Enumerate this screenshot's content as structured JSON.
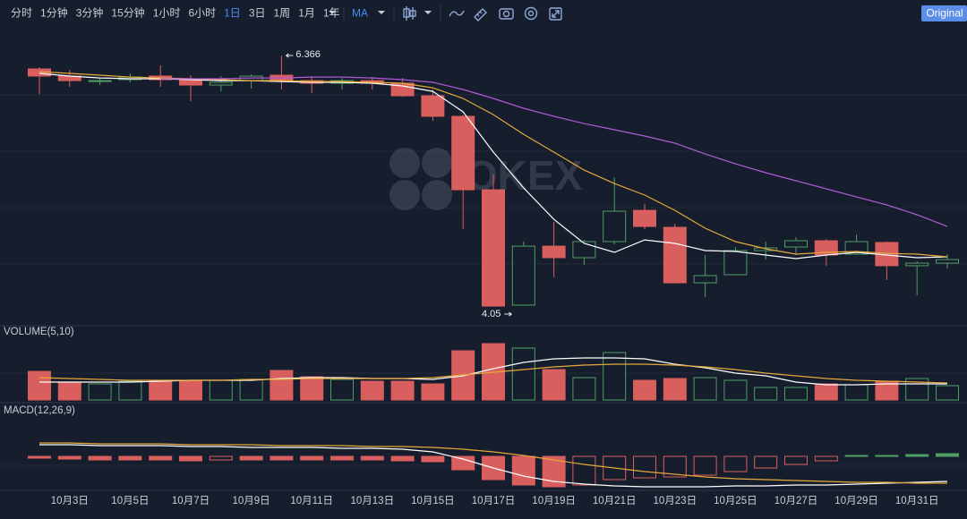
{
  "toolbar": {
    "intervals": [
      "分时",
      "1分钟",
      "3分钟",
      "15分钟",
      "1小时",
      "6小时",
      "1日",
      "3日",
      "1周",
      "1月",
      "1年"
    ],
    "active_interval": "1日",
    "indicator": "MA",
    "mode": "Original"
  },
  "watermark": "OKEX",
  "chart_data": [
    {
      "type": "candlestick",
      "categories": [
        null,
        "10月3日",
        null,
        "10月5日",
        null,
        "10月7日",
        null,
        "10月9日",
        null,
        "10月11日",
        null,
        "10月13日",
        null,
        "10月15日",
        null,
        "10月17日",
        null,
        "10月19日",
        null,
        "10月21日",
        null,
        "10月23日",
        null,
        "10月25日",
        null,
        "10月27日",
        null,
        "10月29日",
        null,
        "10月31日",
        null
      ],
      "open": [
        6.242,
        6.176,
        6.126,
        6.143,
        6.176,
        6.143,
        6.093,
        6.134,
        6.184,
        6.134,
        6.11,
        6.134,
        6.11,
        5.994,
        5.804,
        5.125,
        4.059,
        4.604,
        4.497,
        4.646,
        4.935,
        4.778,
        4.265,
        4.34,
        4.563,
        4.596,
        4.654,
        4.53,
        4.638,
        4.423,
        4.447
      ],
      "high": [
        6.258,
        6.234,
        6.151,
        6.201,
        6.275,
        6.184,
        6.176,
        6.192,
        6.366,
        6.176,
        6.159,
        6.167,
        6.159,
        6.052,
        5.82,
        5.266,
        4.646,
        4.828,
        4.662,
        5.241,
        4.993,
        4.811,
        4.522,
        4.596,
        4.646,
        4.687,
        4.671,
        4.712,
        4.646,
        4.464,
        4.53
      ],
      "low": [
        6.01,
        6.077,
        6.093,
        6.118,
        6.077,
        5.944,
        6.035,
        6.06,
        6.052,
        6.019,
        6.052,
        6.052,
        5.985,
        5.762,
        4.762,
        4.05,
        4.059,
        4.315,
        4.431,
        4.621,
        4.762,
        4.265,
        4.133,
        4.34,
        4.48,
        4.522,
        4.423,
        4.522,
        4.29,
        4.15,
        4.398
      ],
      "close": [
        6.176,
        6.134,
        6.134,
        6.167,
        6.143,
        6.093,
        6.118,
        6.176,
        6.126,
        6.11,
        6.134,
        6.11,
        5.994,
        5.804,
        5.125,
        4.05,
        4.604,
        4.497,
        4.646,
        4.927,
        4.786,
        4.265,
        4.332,
        4.563,
        4.588,
        4.654,
        4.522,
        4.646,
        4.423,
        4.447,
        4.48
      ],
      "up_color": "#4f9e66",
      "down_color": "#d95f5e",
      "ylim": [
        3.885,
        6.631
      ],
      "lines": [
        {
          "color": "#ffffff",
          "values": [
            6.201,
            6.176,
            6.159,
            6.151,
            6.151,
            6.143,
            6.134,
            6.134,
            6.126,
            6.118,
            6.118,
            6.11,
            6.085,
            6.035,
            5.845,
            5.473,
            5.142,
            4.852,
            4.629,
            4.547,
            4.662,
            4.629,
            4.563,
            4.555,
            4.522,
            4.489,
            4.522,
            4.547,
            4.522,
            4.497,
            4.505
          ]
        },
        {
          "color": "#e6a83a",
          "values": [
            6.217,
            6.201,
            6.184,
            6.167,
            6.159,
            6.151,
            6.143,
            6.134,
            6.134,
            6.126,
            6.126,
            6.118,
            6.11,
            6.068,
            5.969,
            5.82,
            5.638,
            5.473,
            5.307,
            5.183,
            5.076,
            4.935,
            4.77,
            4.646,
            4.58,
            4.53,
            4.547,
            4.555,
            4.538,
            4.53,
            4.505
          ]
        },
        {
          "color": "#b05ad8",
          "values": [
            null,
            null,
            null,
            null,
            6.151,
            6.151,
            6.151,
            6.159,
            6.159,
            6.167,
            6.167,
            6.159,
            6.143,
            6.118,
            6.052,
            5.969,
            5.878,
            5.804,
            5.737,
            5.68,
            5.622,
            5.556,
            5.456,
            5.365,
            5.283,
            5.208,
            5.134,
            5.059,
            4.985,
            4.894,
            4.786
          ]
        }
      ]
    },
    {
      "type": "volume",
      "title": "VOLUME(5,10)",
      "values": [
        32,
        20,
        18,
        21,
        22,
        22,
        22,
        23,
        33,
        26,
        23,
        21,
        21,
        18,
        55,
        63,
        58,
        34,
        25,
        53,
        22,
        24,
        25,
        22,
        14,
        14,
        18,
        17,
        21,
        24,
        16
      ],
      "ylim": [
        0,
        70
      ],
      "lines": [
        {
          "color": "#ffffff",
          "values": [
            20,
            20,
            20,
            20,
            21,
            22,
            22,
            22,
            24,
            25,
            25,
            24,
            24,
            23,
            27,
            35,
            42,
            46,
            47,
            47,
            46,
            40,
            36,
            30,
            27,
            20,
            17,
            17,
            18,
            18,
            18
          ]
        },
        {
          "color": "#e6a83a",
          "values": [
            25,
            24,
            23,
            22,
            22,
            22,
            22,
            23,
            23,
            24,
            24,
            24,
            24,
            25,
            28,
            31,
            34,
            37,
            39,
            40,
            40,
            39,
            37,
            34,
            30,
            27,
            24,
            22,
            21,
            20,
            19
          ]
        }
      ]
    },
    {
      "type": "macd",
      "title": "MACD(12,26,9)",
      "histogram": [
        -0.02,
        -0.03,
        -0.04,
        -0.04,
        -0.04,
        -0.05,
        -0.04,
        -0.04,
        -0.04,
        -0.04,
        -0.04,
        -0.04,
        -0.05,
        -0.06,
        -0.15,
        -0.26,
        -0.32,
        -0.34,
        -0.32,
        -0.26,
        -0.24,
        -0.23,
        -0.21,
        -0.17,
        -0.13,
        -0.09,
        -0.05,
        0.01,
        0.01,
        0.02,
        0.03
      ],
      "ylim": [
        -0.38,
        0.45
      ],
      "lines": [
        {
          "color": "#ffffff",
          "values": [
            0.13,
            0.13,
            0.12,
            0.12,
            0.12,
            0.11,
            0.11,
            0.1,
            0.1,
            0.1,
            0.09,
            0.09,
            0.08,
            0.05,
            -0.03,
            -0.13,
            -0.22,
            -0.28,
            -0.31,
            -0.33,
            -0.34,
            -0.34,
            -0.34,
            -0.33,
            -0.33,
            -0.32,
            -0.32,
            -0.31,
            -0.3,
            -0.29,
            -0.28
          ]
        },
        {
          "color": "#e6a83a",
          "values": [
            0.15,
            0.15,
            0.14,
            0.14,
            0.14,
            0.13,
            0.13,
            0.13,
            0.12,
            0.12,
            0.12,
            0.11,
            0.11,
            0.1,
            0.08,
            0.05,
            0.01,
            -0.04,
            -0.09,
            -0.13,
            -0.17,
            -0.2,
            -0.23,
            -0.25,
            -0.26,
            -0.27,
            -0.28,
            -0.29,
            -0.29,
            -0.3,
            -0.3
          ]
        }
      ]
    }
  ]
}
